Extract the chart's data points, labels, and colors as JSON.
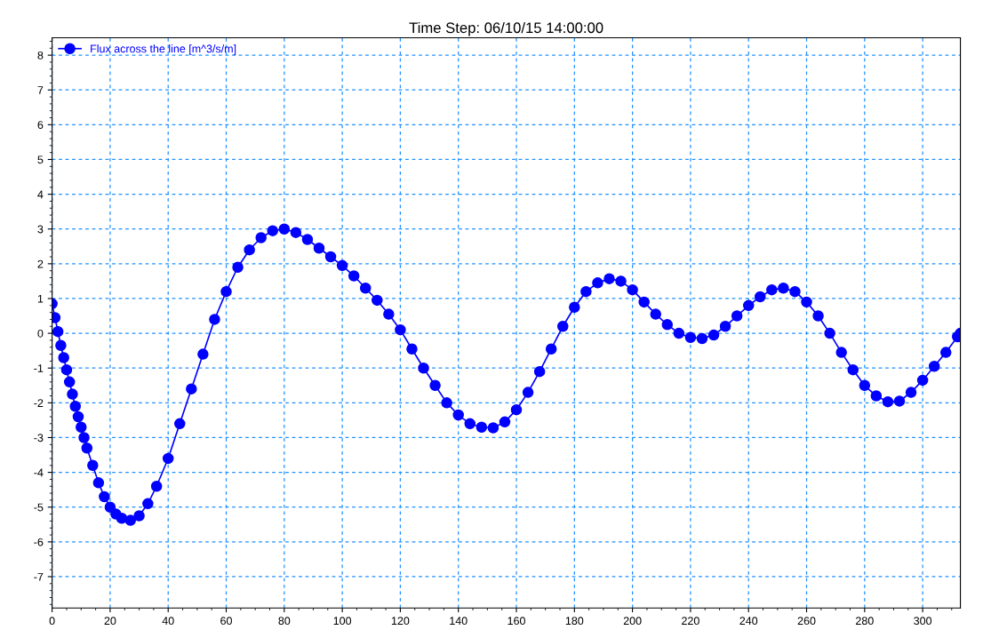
{
  "chart_data": {
    "type": "line",
    "title": "Time Step: 06/10/15 14:00:00",
    "xlim": [
      0,
      313
    ],
    "xticks": [
      0,
      20,
      40,
      60,
      80,
      100,
      120,
      140,
      160,
      180,
      200,
      220,
      240,
      260,
      280,
      300
    ],
    "ylim": [
      -7.9,
      8.5
    ],
    "yticks": [
      -7,
      -6,
      -5,
      -4,
      -3,
      -2,
      -1,
      0,
      1,
      2,
      3,
      4,
      5,
      6,
      7,
      8
    ],
    "grid": true,
    "legend": "top left",
    "marker": "circle",
    "line_style": "solid",
    "series": [
      {
        "name": "Flux across the line [m^3/s/m]",
        "color": "#0000ff",
        "x": [
          0,
          1,
          2,
          3,
          4,
          5,
          6,
          7,
          8,
          9,
          10,
          11,
          12,
          14,
          16,
          18,
          20,
          22,
          24,
          27,
          30,
          33,
          36,
          40,
          44,
          48,
          52,
          56,
          60,
          64,
          68,
          72,
          76,
          80,
          84,
          88,
          92,
          96,
          100,
          104,
          108,
          112,
          116,
          120,
          124,
          128,
          132,
          136,
          140,
          144,
          148,
          152,
          156,
          160,
          164,
          168,
          172,
          176,
          180,
          184,
          188,
          192,
          196,
          200,
          204,
          208,
          212,
          216,
          220,
          224,
          228,
          232,
          236,
          240,
          244,
          248,
          252,
          256,
          260,
          264,
          268,
          272,
          276,
          280,
          284,
          288,
          292,
          296,
          300,
          304,
          308,
          312,
          313
        ],
        "values": [
          0.85,
          0.45,
          0.05,
          -0.35,
          -0.7,
          -1.05,
          -1.4,
          -1.75,
          -2.1,
          -2.4,
          -2.7,
          -3.0,
          -3.3,
          -3.8,
          -4.3,
          -4.7,
          -5.0,
          -5.2,
          -5.32,
          -5.38,
          -5.25,
          -4.9,
          -4.4,
          -3.6,
          -2.6,
          -1.6,
          -0.6,
          0.4,
          1.2,
          1.9,
          2.4,
          2.75,
          2.95,
          3.0,
          2.9,
          2.7,
          2.45,
          2.2,
          1.95,
          1.65,
          1.3,
          0.95,
          0.55,
          0.1,
          -0.45,
          -1.0,
          -1.5,
          -2.0,
          -2.35,
          -2.6,
          -2.7,
          -2.72,
          -2.55,
          -2.2,
          -1.7,
          -1.1,
          -0.45,
          0.2,
          0.75,
          1.2,
          1.45,
          1.57,
          1.5,
          1.25,
          0.9,
          0.55,
          0.25,
          0.0,
          -0.12,
          -0.15,
          -0.05,
          0.2,
          0.5,
          0.8,
          1.05,
          1.25,
          1.3,
          1.2,
          0.9,
          0.5,
          0.0,
          -0.55,
          -1.05,
          -1.5,
          -1.8,
          -1.97,
          -1.95,
          -1.7,
          -1.35,
          -0.95,
          -0.55,
          -0.1,
          0.0
        ]
      }
    ]
  }
}
